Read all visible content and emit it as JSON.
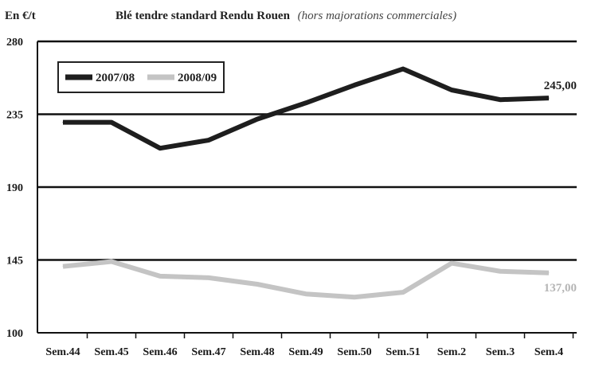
{
  "chart_data": {
    "type": "line",
    "unit_label": "En €/t",
    "title": "Blé tendre standard Rendu Rouen",
    "subtitle": "(hors majorations commerciales)",
    "categories": [
      "Sem.44",
      "Sem.45",
      "Sem.46",
      "Sem.47",
      "Sem.48",
      "Sem.49",
      "Sem.50",
      "Sem.51",
      "Sem.2",
      "Sem.3",
      "Sem.4"
    ],
    "ylim": [
      100,
      280
    ],
    "yticks": [
      "100",
      "145",
      "190",
      "235",
      "280"
    ],
    "grid": true,
    "legend_position": "top-left",
    "series": [
      {
        "name": "2007/08",
        "color": "#1e1e1e",
        "values": [
          230,
          230,
          214,
          219,
          232,
          242,
          253,
          263,
          250,
          244,
          245
        ],
        "end_label": "245,00"
      },
      {
        "name": "2008/09",
        "color": "#c4c4c4",
        "values": [
          141,
          144,
          135,
          134,
          130,
          124,
          122,
          125,
          143,
          138,
          137
        ],
        "end_label": "137,00"
      }
    ]
  }
}
